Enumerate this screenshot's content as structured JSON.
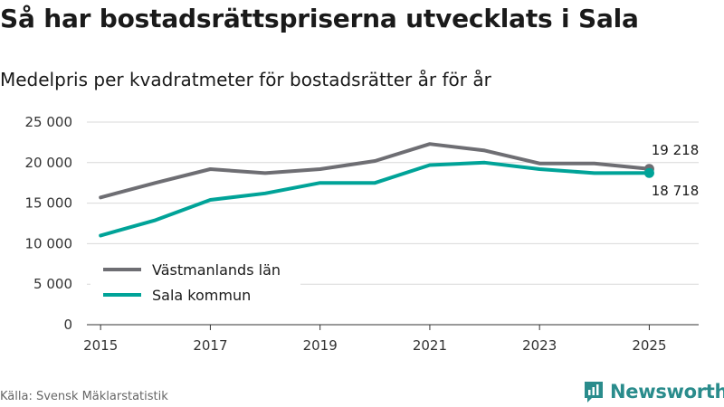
{
  "colors": {
    "series_1": "#6e6e73",
    "series_2": "#00a398",
    "grid": "#d9d9d9",
    "brand": "#2a8c8c"
  },
  "chart_data": {
    "type": "line",
    "title": "Så har bostadsrättspriserna utvecklats i Sala",
    "subtitle": "Medelpris per kvadratmeter för bostadsrätter år för år",
    "x": [
      2015,
      2016,
      2017,
      2018,
      2019,
      2020,
      2021,
      2022,
      2023,
      2024,
      2025
    ],
    "x_tick_labels": [
      "2015",
      "2017",
      "2019",
      "2021",
      "2023",
      "2025"
    ],
    "x_tick_values": [
      2015,
      2017,
      2019,
      2021,
      2023,
      2025
    ],
    "ylim": [
      0,
      25000
    ],
    "y_tick_values": [
      0,
      5000,
      10000,
      15000,
      20000,
      25000
    ],
    "y_tick_labels": [
      "0",
      "5 000",
      "10 000",
      "15 000",
      "20 000",
      "25 000"
    ],
    "series": [
      {
        "name": "Västmanlands län",
        "color": "#6e6e73",
        "values": [
          15700,
          17500,
          19200,
          18700,
          19200,
          20200,
          22300,
          21500,
          19900,
          19900,
          19218
        ]
      },
      {
        "name": "Sala kommun",
        "color": "#00a398",
        "values": [
          11000,
          12900,
          15400,
          16200,
          17500,
          17500,
          19700,
          20000,
          19200,
          18700,
          18718
        ]
      }
    ],
    "end_labels": [
      "19 218",
      "18 718"
    ],
    "legend_position": "bottom-left",
    "grid": true,
    "source": "Källa: Svensk Mäklarstatistik"
  },
  "brand": {
    "name": "Newsworthy"
  }
}
